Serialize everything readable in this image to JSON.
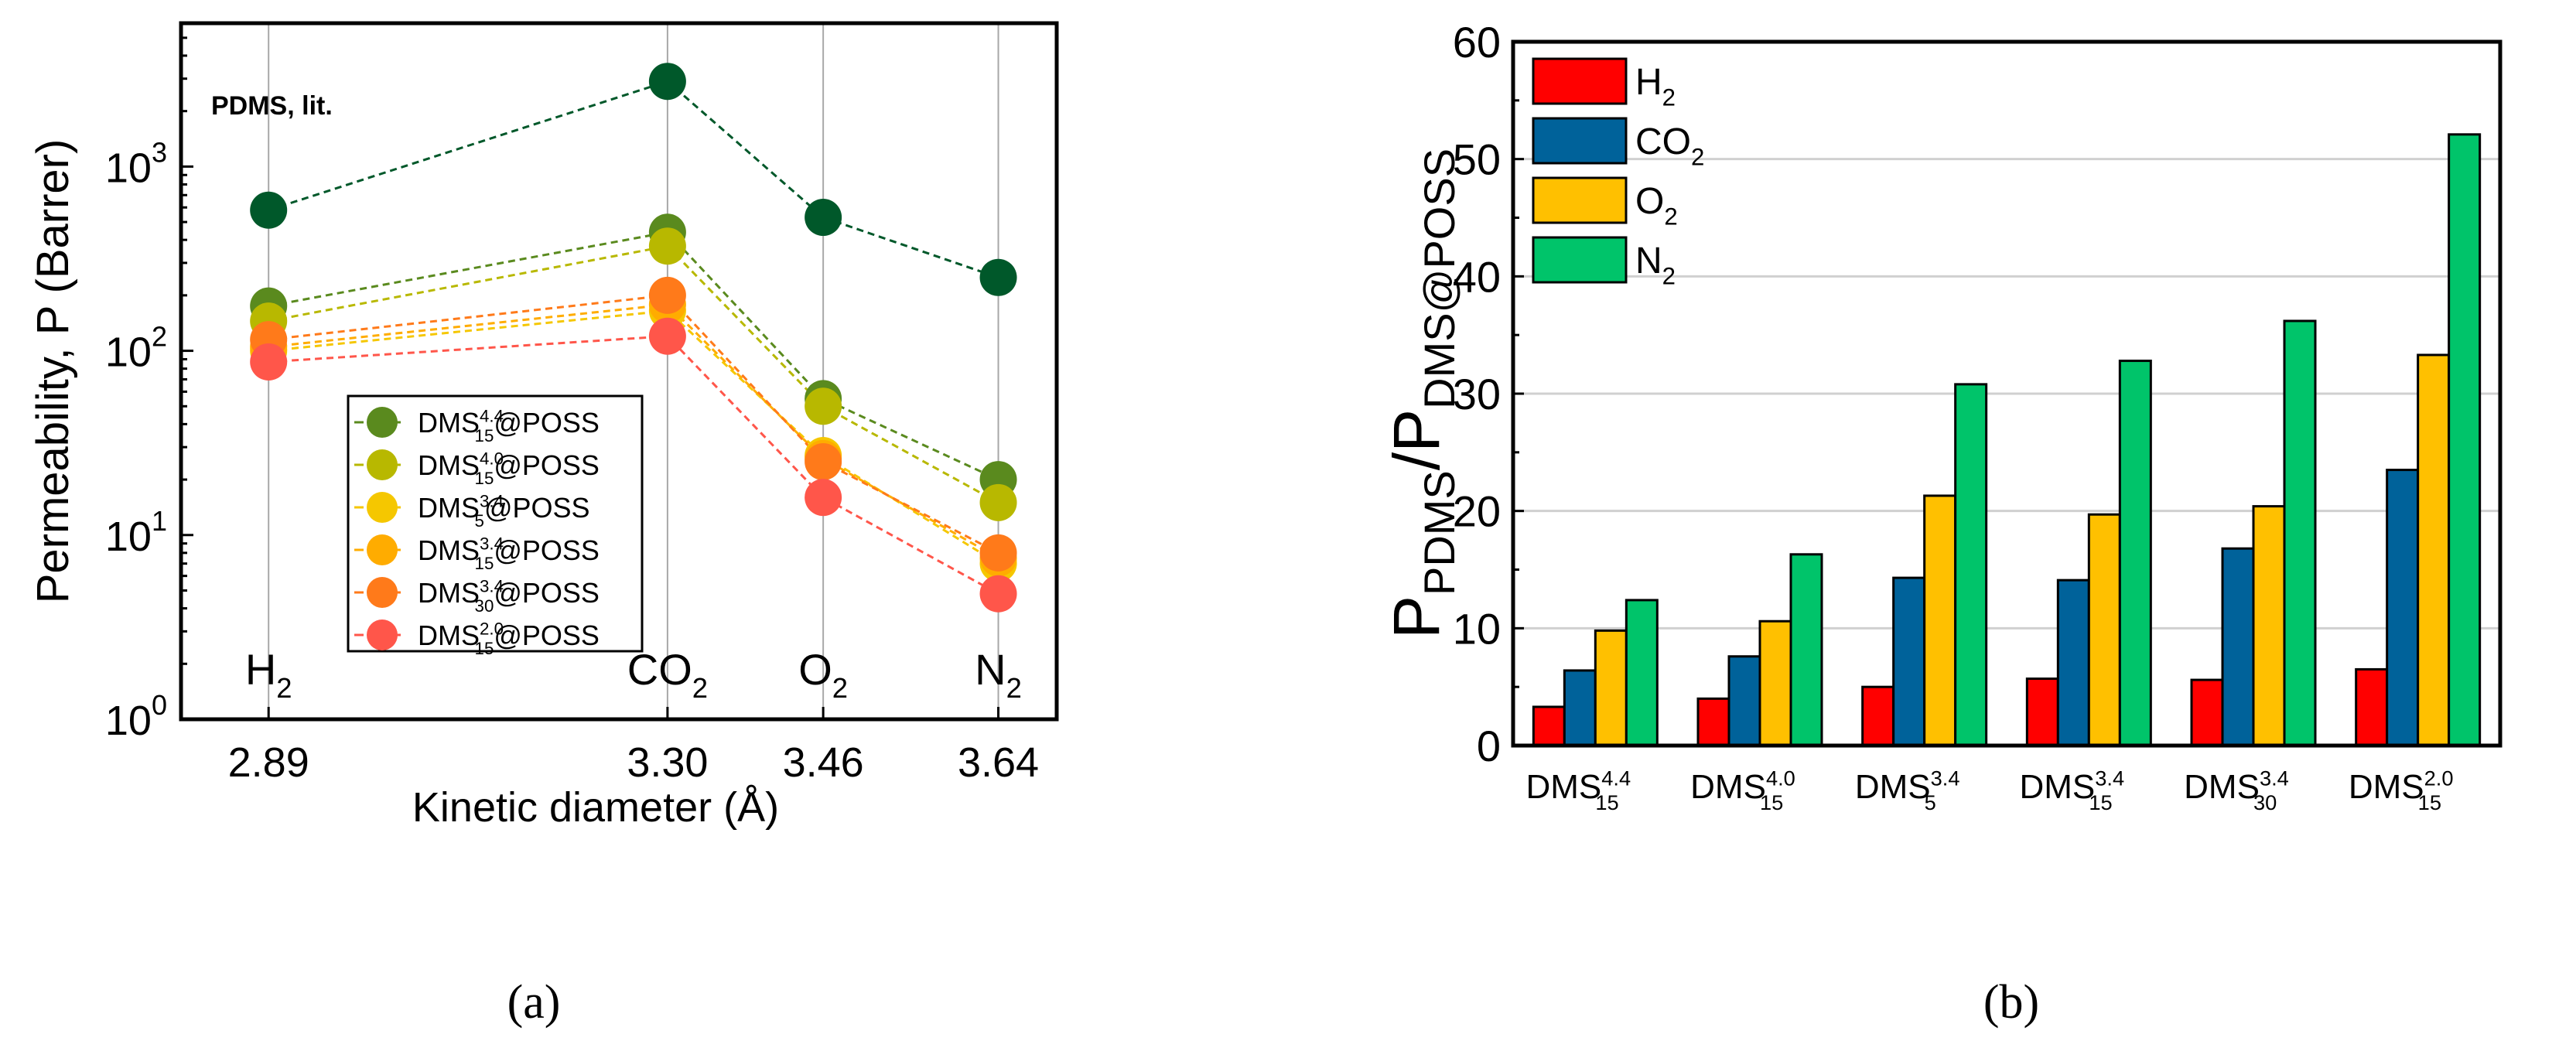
{
  "chart_data": [
    {
      "type": "scatter",
      "panel_label": "(a)",
      "xlabel": "Kinetic diameter (Å)",
      "ylabel": "Permeability, P (Barrer)",
      "yscale": "log",
      "ylim": [
        1,
        6000
      ],
      "xlim": [
        2.8,
        3.7
      ],
      "x": [
        2.89,
        3.3,
        3.46,
        3.64
      ],
      "xtick_labels": [
        "2.89",
        "3.30",
        "3.46",
        "3.64"
      ],
      "ytick_labels": [
        {
          "base": "10",
          "exp": "0",
          "value": 1
        },
        {
          "base": "10",
          "exp": "1",
          "value": 10
        },
        {
          "base": "10",
          "exp": "2",
          "value": 100
        },
        {
          "base": "10",
          "exp": "3",
          "value": 1000
        }
      ],
      "gas_labels": [
        {
          "text": "H",
          "sub": "2"
        },
        {
          "text": "CO",
          "sub": "2"
        },
        {
          "text": "O",
          "sub": "2"
        },
        {
          "text": "N",
          "sub": "2"
        }
      ],
      "annotation": "PDMS, lit.",
      "grid": "vertical lines at x ticks",
      "legend_position": "lower-left",
      "series": [
        {
          "label": {
            "base": "",
            "sup": "",
            "sub": "",
            "suffix": ""
          },
          "annotation_series": true,
          "color": "#00582a",
          "values": [
            580,
            2900,
            530,
            250
          ]
        },
        {
          "label": {
            "base": "DMS",
            "sup": "4.4",
            "sub": "15",
            "suffix": "@POSS"
          },
          "color": "#5a8a1e",
          "values": [
            175,
            440,
            55,
            20
          ]
        },
        {
          "label": {
            "base": "DMS",
            "sup": "4.0",
            "sub": "15",
            "suffix": "@POSS"
          },
          "color": "#b8b800",
          "values": [
            145,
            370,
            50,
            15
          ]
        },
        {
          "label": {
            "base": "DMS",
            "sup": "3.4",
            "sub": "5",
            "suffix": "@POSS"
          },
          "color": "#f5c700",
          "values": [
            100,
            165,
            27,
            7
          ]
        },
        {
          "label": {
            "base": "DMS",
            "sup": "3.4",
            "sub": "15",
            "suffix": "@POSS"
          },
          "color": "#ffac00",
          "values": [
            105,
            178,
            26,
            7.5
          ]
        },
        {
          "label": {
            "base": "DMS",
            "sup": "3.4",
            "sub": "30",
            "suffix": "@POSS"
          },
          "color": "#ff7a1a",
          "values": [
            115,
            200,
            25,
            8
          ]
        },
        {
          "label": {
            "base": "DMS",
            "sup": "2.0",
            "sub": "15",
            "suffix": "@POSS"
          },
          "color": "#ff564a",
          "values": [
            87,
            120,
            16,
            4.8
          ]
        }
      ]
    },
    {
      "type": "bar",
      "panel_label": "(b)",
      "ylabel": {
        "p1": "P",
        "s1": "PDMS",
        "p2": "/P",
        "s2": "DMS@POSS"
      },
      "ylim": [
        0,
        60
      ],
      "yticks": [
        0,
        10,
        20,
        30,
        40,
        50,
        60
      ],
      "grid": "horizontal",
      "legend_position": "top-left",
      "categories": [
        {
          "base": "DMS",
          "sup": "4.4",
          "sub": "15"
        },
        {
          "base": "DMS",
          "sup": "4.0",
          "sub": "15"
        },
        {
          "base": "DMS",
          "sup": "3.4",
          "sub": "5"
        },
        {
          "base": "DMS",
          "sup": "3.4",
          "sub": "15"
        },
        {
          "base": "DMS",
          "sup": "3.4",
          "sub": "30"
        },
        {
          "base": "DMS",
          "sup": "2.0",
          "sub": "15"
        }
      ],
      "series": [
        {
          "name": {
            "text": "H",
            "sub": "2"
          },
          "color": "#ff0000",
          "values": [
            3.3,
            4.0,
            5.0,
            5.7,
            5.6,
            6.5
          ]
        },
        {
          "name": {
            "text": "CO",
            "sub": "2"
          },
          "color": "#00629a",
          "values": [
            6.4,
            7.6,
            14.3,
            14.1,
            16.8,
            23.5
          ]
        },
        {
          "name": {
            "text": "O",
            "sub": "2"
          },
          "color": "#ffc000",
          "values": [
            9.8,
            10.6,
            21.3,
            19.7,
            20.4,
            33.3
          ]
        },
        {
          "name": {
            "text": "N",
            "sub": "2"
          },
          "color": "#00c46a",
          "values": [
            12.4,
            16.3,
            30.8,
            32.8,
            36.2,
            52.1
          ]
        }
      ]
    }
  ]
}
